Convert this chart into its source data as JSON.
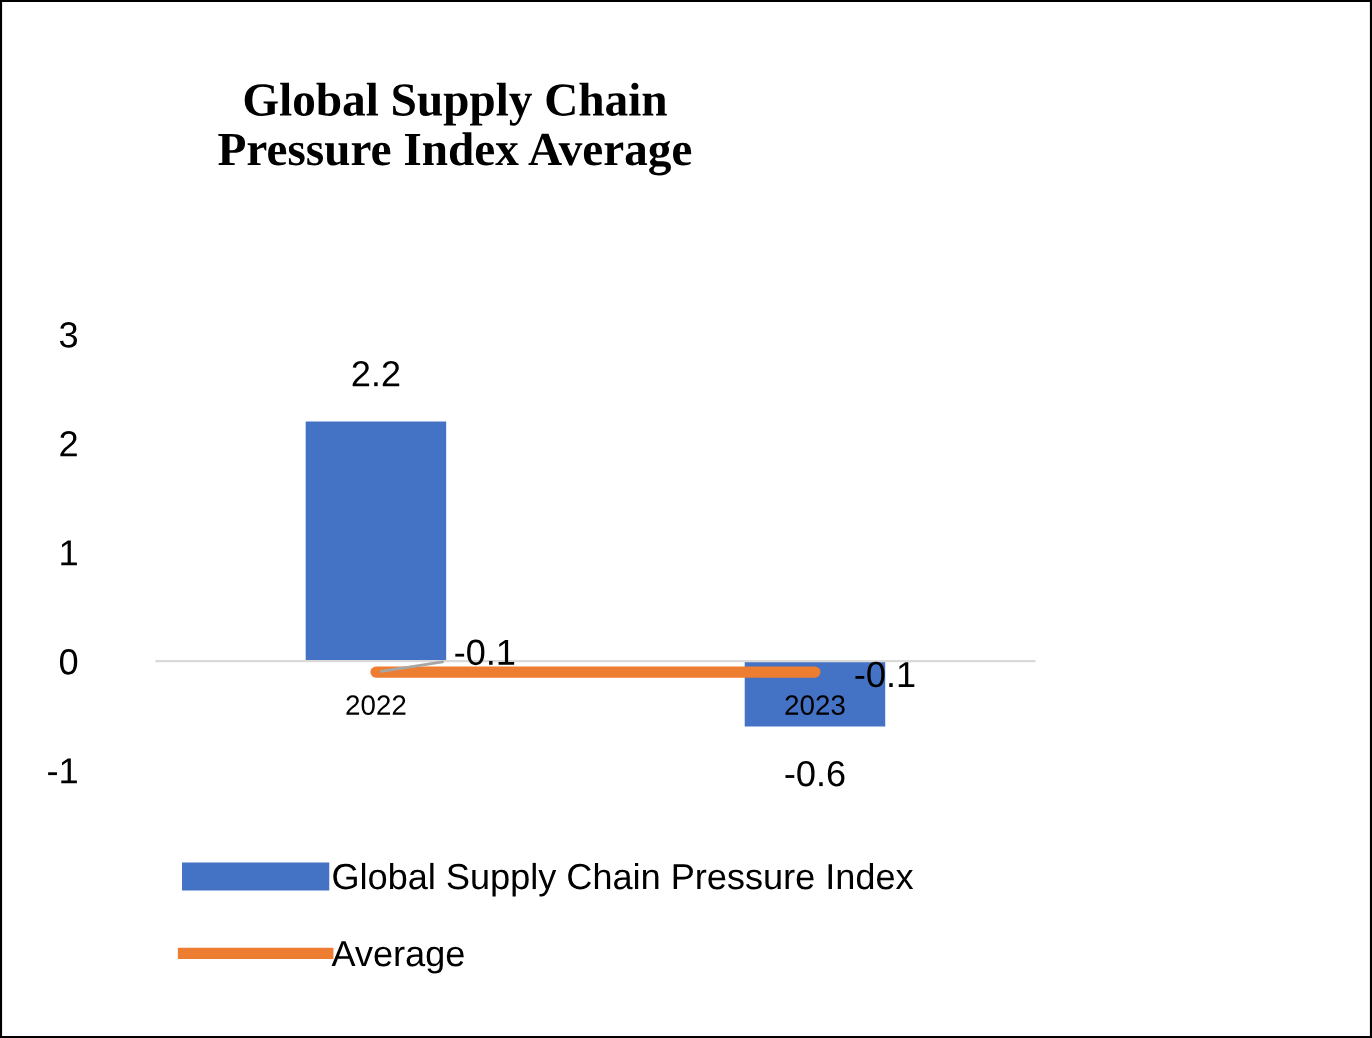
{
  "chart_data": {
    "type": "bar",
    "title": "Global Supply Chain\nPressure Index Average",
    "categories": [
      "2022",
      "2023"
    ],
    "series": [
      {
        "name": "Global Supply Chain Pressure Index",
        "color": "#4472c4",
        "values": [
          2.2,
          -0.6
        ]
      },
      {
        "name": "Average",
        "type": "line",
        "color": "#ed7d31",
        "values": [
          -0.1,
          -0.1
        ]
      }
    ],
    "ylim": [
      -1,
      3
    ],
    "yticks": [
      -1,
      0,
      1,
      2,
      3
    ],
    "grid": false,
    "data_labels": true,
    "legend": "bottom",
    "marker": "none"
  }
}
